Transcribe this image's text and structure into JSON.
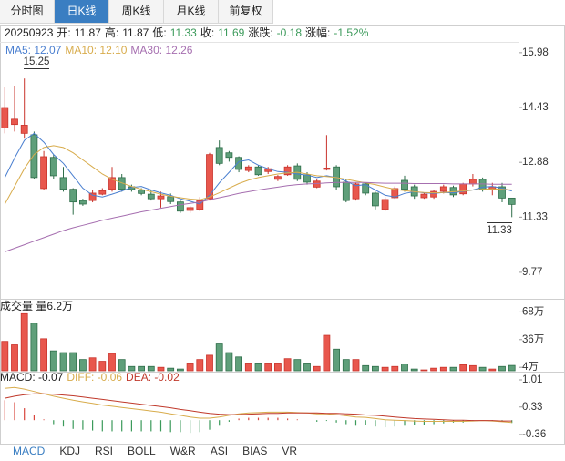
{
  "header": {
    "tabs": [
      "分时图",
      "日K线",
      "周K线",
      "月K线",
      "前复权"
    ],
    "active_tab": 1
  },
  "quote": {
    "date": "20250923",
    "items": [
      {
        "label": "开:",
        "value": "11.87",
        "color": "#222"
      },
      {
        "label": "高:",
        "value": "11.87",
        "color": "#222"
      },
      {
        "label": "低:",
        "value": "11.33",
        "color": "#3b9a5a"
      },
      {
        "label": "收:",
        "value": "11.69",
        "color": "#3b9a5a"
      },
      {
        "label": "涨跌:",
        "value": "-0.18",
        "color": "#3b9a5a"
      },
      {
        "label": "涨幅:",
        "value": "-1.52%",
        "color": "#3b9a5a"
      }
    ]
  },
  "chart_data": [
    {
      "type": "candlestick",
      "up_color": "#e8574d",
      "up_edge": "#c9342c",
      "down_color": "#5f9f7a",
      "down_edge": "#2f6e4a",
      "ylim": [
        9.02,
        16.26
      ],
      "yticks": [
        15.98,
        14.43,
        12.88,
        11.33,
        9.77
      ],
      "annotations": [
        "15.25",
        "11.33"
      ],
      "open": [
        13.85,
        13.95,
        13.7,
        13.66,
        12.14,
        13.02,
        12.45,
        12.12,
        11.8,
        11.8,
        11.98,
        12.12,
        12.45,
        12.19,
        12.1,
        11.98,
        11.85,
        11.91,
        11.76,
        11.52,
        11.55,
        11.85,
        13.3,
        13.15,
        13.02,
        12.65,
        12.75,
        12.62,
        12.4,
        12.53,
        12.78,
        12.53,
        12.18,
        12.68,
        12.75,
        12.32,
        11.85,
        12.27,
        12.01,
        11.55,
        11.88,
        12.37,
        12.19,
        11.88,
        11.9,
        12.06,
        12.17,
        11.99,
        12.27,
        12.4,
        12.11,
        12.19,
        11.87
      ],
      "high": [
        15.0,
        15.05,
        15.25,
        13.75,
        13.2,
        13.1,
        12.75,
        12.15,
        11.85,
        12.1,
        12.15,
        12.75,
        12.55,
        12.25,
        12.15,
        12.1,
        12.05,
        12.0,
        11.8,
        11.65,
        11.9,
        13.15,
        13.5,
        13.2,
        13.05,
        12.8,
        12.8,
        12.75,
        12.52,
        12.8,
        12.85,
        12.6,
        12.4,
        13.65,
        12.8,
        12.4,
        12.3,
        12.3,
        12.05,
        11.9,
        12.2,
        12.5,
        12.25,
        12.02,
        12.1,
        12.25,
        12.22,
        12.3,
        12.55,
        12.45,
        12.3,
        12.3,
        11.87
      ],
      "low": [
        13.7,
        13.75,
        13.55,
        12.4,
        12.1,
        12.4,
        12.05,
        11.4,
        11.65,
        11.75,
        11.95,
        12.05,
        12.05,
        12.05,
        11.95,
        11.8,
        11.6,
        11.7,
        11.45,
        11.45,
        11.5,
        11.8,
        12.8,
        12.9,
        12.6,
        12.6,
        12.5,
        12.55,
        12.35,
        12.5,
        12.35,
        12.25,
        12.15,
        12.65,
        12.1,
        11.75,
        11.8,
        11.95,
        11.55,
        11.5,
        11.85,
        12.05,
        11.85,
        11.85,
        11.85,
        12.0,
        11.9,
        11.95,
        12.2,
        12.05,
        11.95,
        11.75,
        11.33
      ],
      "close": [
        14.43,
        14.1,
        13.93,
        12.45,
        13.04,
        12.5,
        12.12,
        11.76,
        11.7,
        12.01,
        12.08,
        12.45,
        12.12,
        12.11,
        12.0,
        11.85,
        11.93,
        11.77,
        11.5,
        11.6,
        11.8,
        13.1,
        12.85,
        13.02,
        12.68,
        12.75,
        12.53,
        12.7,
        12.48,
        12.75,
        12.4,
        12.32,
        12.35,
        12.72,
        12.19,
        11.8,
        12.27,
        12.01,
        11.65,
        11.83,
        12.14,
        12.12,
        11.93,
        11.98,
        12.06,
        12.19,
        11.96,
        12.27,
        12.4,
        12.12,
        12.19,
        11.87,
        11.69
      ],
      "series": [
        {
          "name": "MA5: 12.07",
          "color": "#4a7fd0",
          "values": [
            12.45,
            13.0,
            13.5,
            13.7,
            13.45,
            13.1,
            12.85,
            12.5,
            12.15,
            11.95,
            11.9,
            11.98,
            12.07,
            12.17,
            12.2,
            12.1,
            12.02,
            11.95,
            11.85,
            11.78,
            11.7,
            11.95,
            12.3,
            12.6,
            12.9,
            12.95,
            12.8,
            12.7,
            12.62,
            12.6,
            12.55,
            12.52,
            12.45,
            12.5,
            12.45,
            12.35,
            12.22,
            12.25,
            12.1,
            11.95,
            11.9,
            12.0,
            12.05,
            12.02,
            12.0,
            12.03,
            12.02,
            12.06,
            12.1,
            12.18,
            12.2,
            12.15,
            12.07
          ]
        },
        {
          "name": "MA10: 12.10",
          "color": "#d8ac4c",
          "values": [
            11.7,
            12.2,
            12.7,
            13.1,
            13.3,
            13.35,
            13.3,
            13.15,
            12.95,
            12.75,
            12.55,
            12.4,
            12.3,
            12.2,
            12.12,
            12.05,
            11.98,
            11.92,
            11.88,
            11.84,
            11.82,
            11.9,
            12.02,
            12.15,
            12.28,
            12.38,
            12.45,
            12.5,
            12.55,
            12.58,
            12.6,
            12.55,
            12.5,
            12.48,
            12.45,
            12.4,
            12.35,
            12.3,
            12.25,
            12.18,
            12.12,
            12.08,
            12.05,
            12.03,
            12.02,
            12.03,
            12.05,
            12.07,
            12.1,
            12.12,
            12.13,
            12.12,
            12.1
          ]
        },
        {
          "name": "MA30: 12.26",
          "color": "#a66fb0",
          "values": [
            10.35,
            10.45,
            10.55,
            10.65,
            10.75,
            10.85,
            10.95,
            11.03,
            11.1,
            11.17,
            11.24,
            11.3,
            11.36,
            11.42,
            11.48,
            11.53,
            11.58,
            11.63,
            11.68,
            11.72,
            11.76,
            11.82,
            11.88,
            11.94,
            12.0,
            12.05,
            12.1,
            12.14,
            12.18,
            12.22,
            12.25,
            12.27,
            12.28,
            12.3,
            12.31,
            12.31,
            12.31,
            12.31,
            12.3,
            12.29,
            12.29,
            12.29,
            12.28,
            12.28,
            12.28,
            12.28,
            12.27,
            12.27,
            12.27,
            12.27,
            12.26,
            12.26,
            12.26
          ]
        }
      ]
    },
    {
      "type": "bar",
      "title": "成交量 量6.2万",
      "ylim": [
        0,
        80
      ],
      "yticks": [
        {
          "value": 68,
          "label": "68万"
        },
        {
          "value": 36,
          "label": "36万"
        },
        {
          "value": 4,
          "label": "4万"
        }
      ],
      "values": [
        34,
        30,
        66,
        55,
        37,
        23,
        21,
        21,
        13,
        15,
        11,
        20,
        13,
        5,
        5,
        5,
        4,
        3,
        2,
        9,
        13,
        18,
        31,
        21,
        16,
        9,
        9,
        9,
        9,
        14,
        13,
        9,
        5,
        41,
        25,
        13,
        13,
        6,
        5,
        4,
        5,
        8,
        2,
        1,
        3,
        4,
        4,
        7,
        6,
        4,
        2,
        5,
        6.2
      ]
    },
    {
      "type": "macd",
      "ylim": [
        -0.59,
        1.17
      ],
      "yticks": [
        1.01,
        0.33,
        -0.36
      ],
      "hist": {
        "name": "MACD: -0.07",
        "up_color": "#d9453d",
        "down_color": "#3b9a5a",
        "values": [
          0.5,
          0.45,
          0.3,
          0.14,
          0.02,
          -0.1,
          -0.16,
          -0.22,
          -0.24,
          -0.26,
          -0.28,
          -0.28,
          -0.28,
          -0.28,
          -0.28,
          -0.28,
          -0.28,
          -0.3,
          -0.3,
          -0.32,
          -0.3,
          -0.24,
          -0.14,
          -0.04,
          0.04,
          0.06,
          0.06,
          0.06,
          0.06,
          0.04,
          0.02,
          0.0,
          -0.04,
          -0.02,
          -0.06,
          -0.1,
          -0.14,
          -0.12,
          -0.16,
          -0.18,
          -0.16,
          -0.14,
          -0.12,
          -0.12,
          -0.1,
          -0.08,
          -0.06,
          -0.06,
          -0.02,
          0.0,
          -0.02,
          -0.04,
          -0.07
        ]
      },
      "series": [
        {
          "name": "DIFF: -0.06",
          "color": "#d8ac4c",
          "values": [
            0.8,
            0.82,
            0.78,
            0.72,
            0.66,
            0.6,
            0.55,
            0.5,
            0.46,
            0.42,
            0.38,
            0.35,
            0.32,
            0.29,
            0.26,
            0.23,
            0.2,
            0.16,
            0.12,
            0.08,
            0.05,
            0.05,
            0.08,
            0.12,
            0.16,
            0.18,
            0.19,
            0.2,
            0.2,
            0.2,
            0.19,
            0.18,
            0.16,
            0.16,
            0.14,
            0.11,
            0.08,
            0.07,
            0.04,
            0.01,
            0.0,
            -0.01,
            -0.02,
            -0.03,
            -0.03,
            -0.03,
            -0.03,
            -0.03,
            -0.02,
            -0.01,
            -0.02,
            -0.04,
            -0.06
          ]
        },
        {
          "name": "DEA: -0.02",
          "color": "#c0392b",
          "values": [
            0.55,
            0.6,
            0.64,
            0.66,
            0.66,
            0.65,
            0.63,
            0.61,
            0.58,
            0.55,
            0.52,
            0.49,
            0.46,
            0.43,
            0.4,
            0.37,
            0.34,
            0.31,
            0.27,
            0.24,
            0.2,
            0.17,
            0.15,
            0.14,
            0.14,
            0.15,
            0.16,
            0.17,
            0.17,
            0.18,
            0.18,
            0.18,
            0.18,
            0.17,
            0.17,
            0.16,
            0.15,
            0.13,
            0.12,
            0.1,
            0.08,
            0.06,
            0.04,
            0.03,
            0.02,
            0.01,
            0,
            0,
            -0.01,
            -0.01,
            -0.01,
            -0.02,
            -0.02
          ]
        }
      ]
    }
  ],
  "indicator_tabs": [
    "MACD",
    "KDJ",
    "RSI",
    "BOLL",
    "W&R",
    "ASI",
    "BIAS",
    "VR"
  ],
  "active_indicator": 0
}
